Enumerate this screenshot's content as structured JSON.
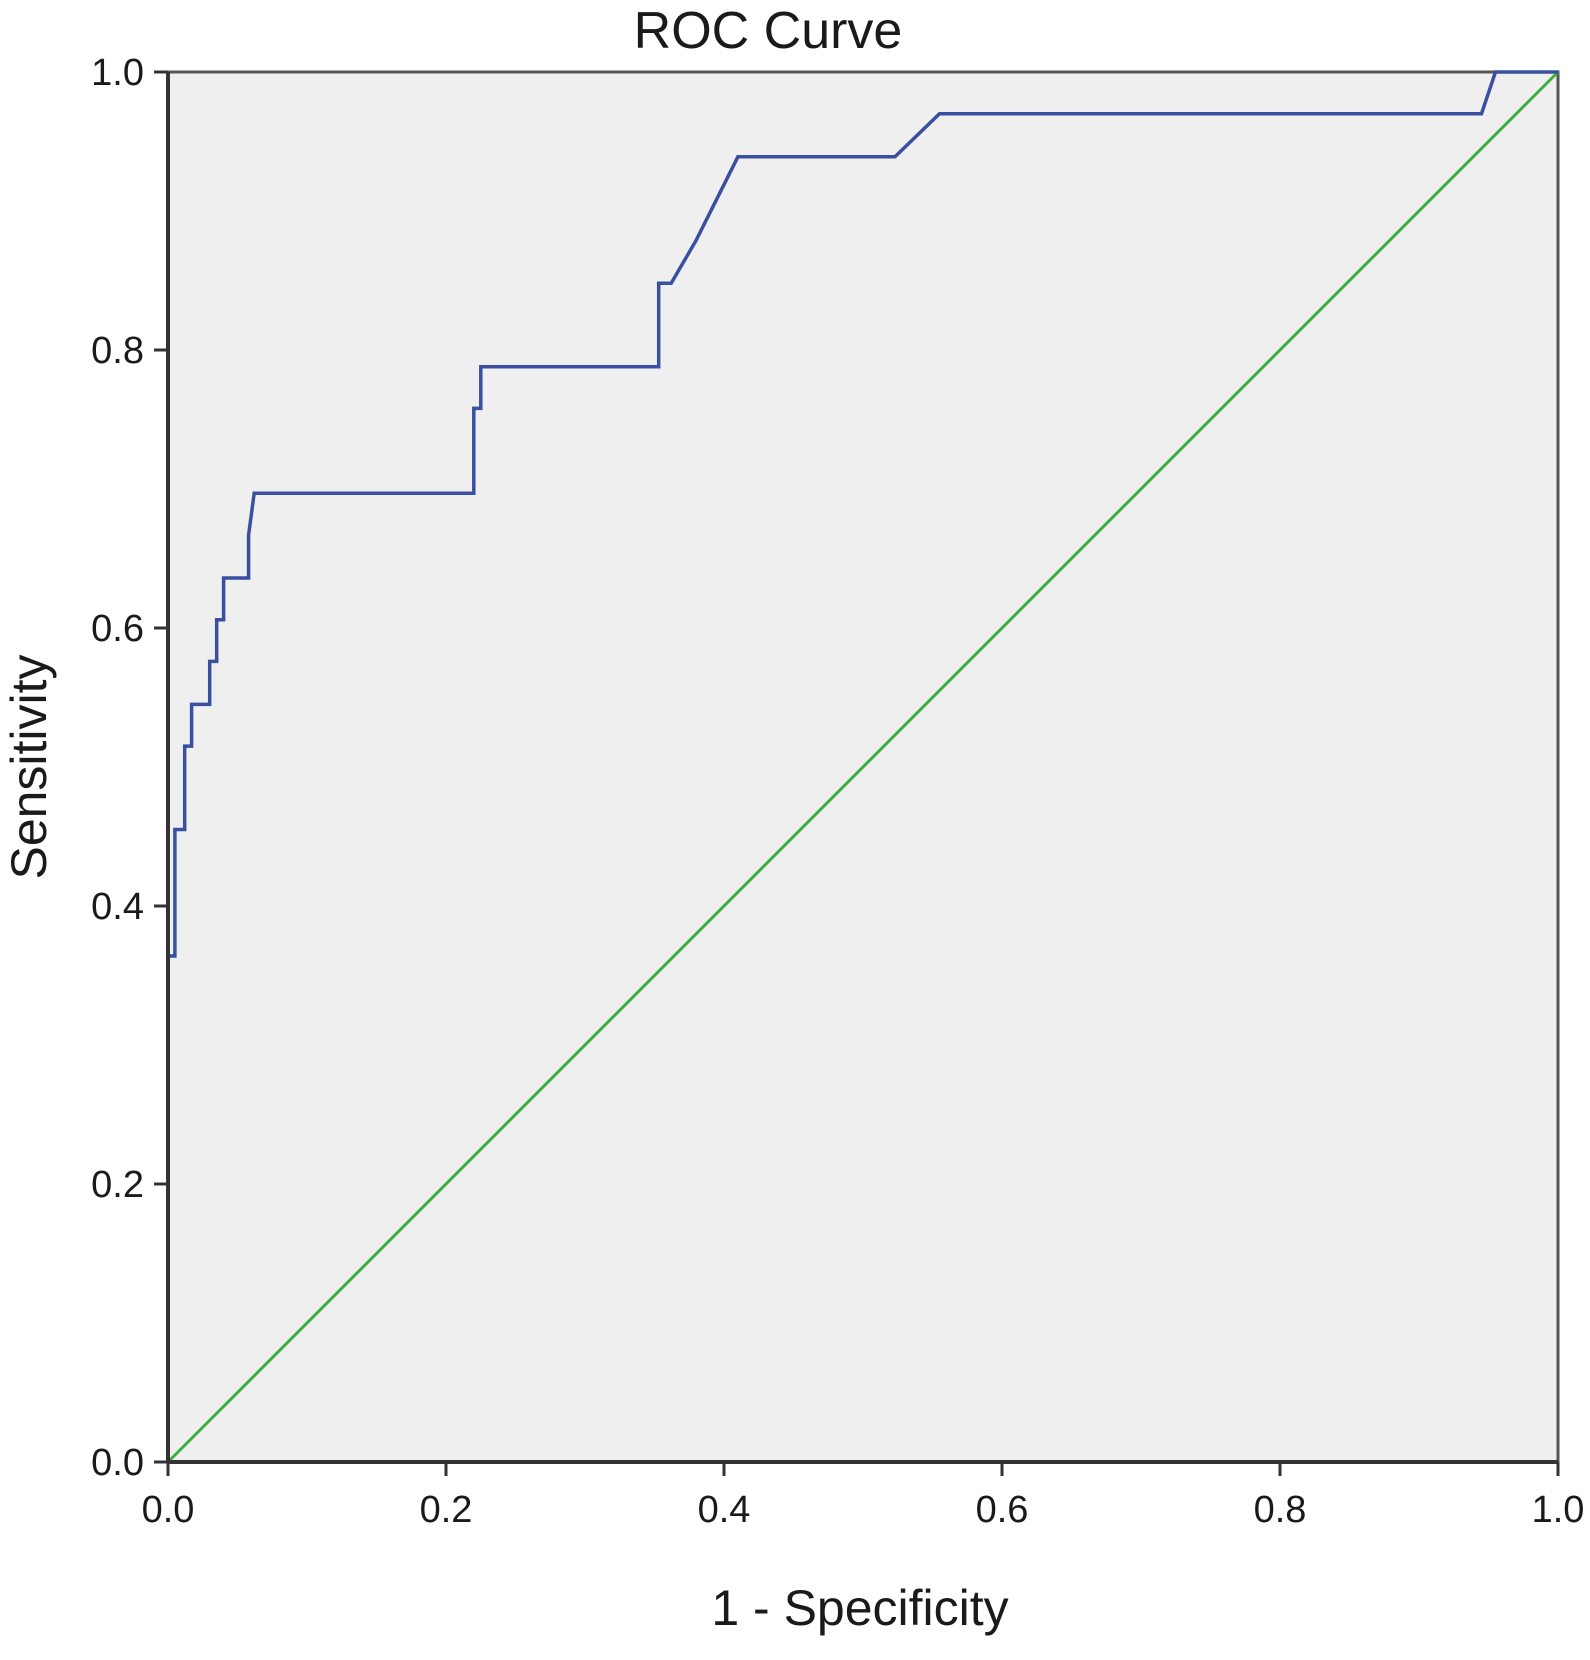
{
  "chart_data": {
    "type": "line",
    "title": "ROC Curve",
    "xlabel": "1 - Specificity",
    "ylabel": "Sensitivity",
    "xlim": [
      0.0,
      1.0
    ],
    "ylim": [
      0.0,
      1.0
    ],
    "x_ticks": [
      "0.0",
      "0.2",
      "0.4",
      "0.6",
      "0.8",
      "1.0"
    ],
    "y_ticks": [
      "0.0",
      "0.2",
      "0.4",
      "0.6",
      "0.8",
      "1.0"
    ],
    "grid": false,
    "legend": "none",
    "colors": {
      "plot_background": "#efefef",
      "roc_line": "#3a4fa0",
      "reference_line": "#3cb043",
      "axis": "#333333"
    },
    "series": [
      {
        "x": [
          0.0,
          0.0,
          0.0,
          0.005,
          0.005,
          0.012,
          0.012,
          0.017,
          0.017,
          0.03,
          0.03,
          0.035,
          0.035,
          0.04,
          0.04,
          0.058,
          0.058,
          0.062,
          0.22,
          0.22,
          0.225,
          0.225,
          0.353,
          0.353,
          0.362,
          0.38,
          0.41,
          0.523,
          0.555,
          0.945,
          0.955,
          1.0
        ],
        "y": [
          0.0,
          0.364,
          0.364,
          0.364,
          0.455,
          0.455,
          0.515,
          0.515,
          0.545,
          0.545,
          0.576,
          0.576,
          0.606,
          0.606,
          0.636,
          0.636,
          0.667,
          0.697,
          0.697,
          0.758,
          0.758,
          0.788,
          0.788,
          0.848,
          0.848,
          0.879,
          0.939,
          0.939,
          0.97,
          0.97,
          1.0,
          1.0
        ]
      },
      {
        "x": [
          0.0,
          1.0
        ],
        "y": [
          0.0,
          1.0
        ]
      }
    ]
  }
}
